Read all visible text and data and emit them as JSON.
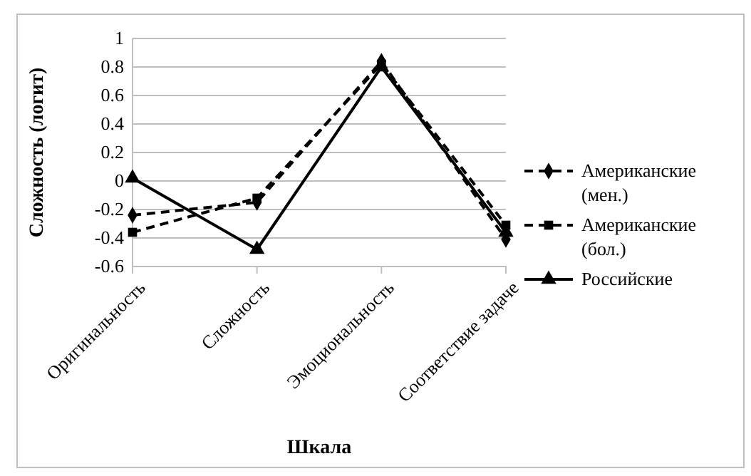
{
  "chart_data": {
    "type": "line",
    "xlabel": "Шкала",
    "ylabel": "Сложность (логит)",
    "categories": [
      "Оригинальность",
      "Сложность",
      "Эмоциональность",
      "Соответствие задаче"
    ],
    "ylim": [
      -0.6,
      1
    ],
    "yticks": [
      -0.6,
      -0.4,
      -0.2,
      0,
      0.2,
      0.4,
      0.6,
      0.8,
      1
    ],
    "grid": "y",
    "legend": "right",
    "series": [
      {
        "name": "Американские (мен.)",
        "color": "#000000",
        "marker": "diamond",
        "line_style": "dashed",
        "values": [
          -0.24,
          -0.15,
          0.84,
          -0.41
        ]
      },
      {
        "name": "Американские (бол.)",
        "color": "#000000",
        "marker": "square",
        "line_style": "dashed",
        "values": [
          -0.36,
          -0.12,
          0.82,
          -0.31
        ]
      },
      {
        "name": "Российские",
        "color": "#000000",
        "marker": "triangle",
        "line_style": "solid",
        "values": [
          0.02,
          -0.48,
          0.8,
          -0.36
        ]
      }
    ]
  }
}
